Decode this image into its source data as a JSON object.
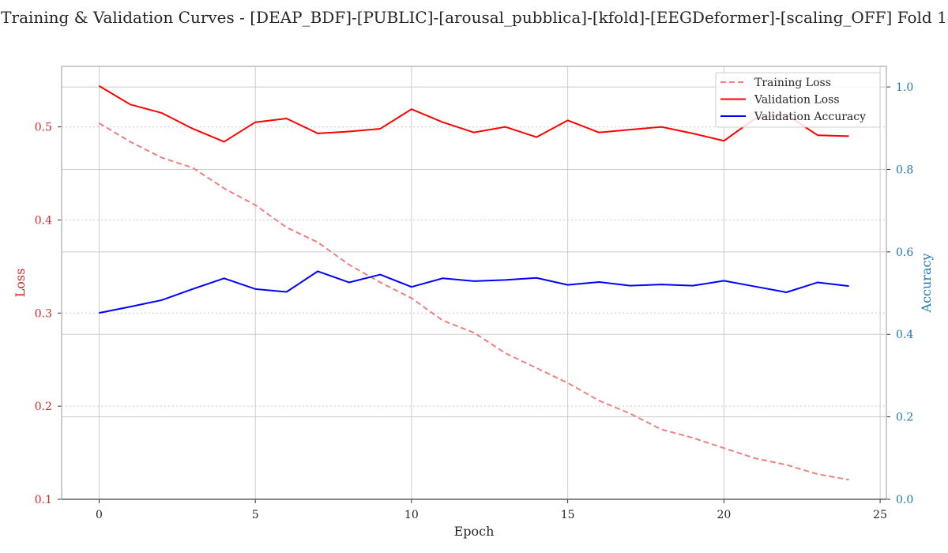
{
  "chart_data": {
    "type": "line",
    "title": "Training & Validation Curves - [DEAP_BDF]-[PUBLIC]-[arousal_pubblica]-[kfold]-[EEGDeformer]-[scaling_OFF] Fold 1",
    "xlabel": "Epoch",
    "ylabel_left": "Loss",
    "ylabel_right": "Accuracy",
    "xlim": [
      -1.2,
      25.2
    ],
    "ylim_left": [
      0.1,
      0.565
    ],
    "ylim_right": [
      0.0,
      1.05
    ],
    "x_ticks": [
      0,
      5,
      10,
      15,
      20,
      25
    ],
    "y_ticks_left": [
      0.1,
      0.2,
      0.3,
      0.4,
      0.5
    ],
    "y_ticks_right": [
      0.0,
      0.2,
      0.4,
      0.6,
      0.8,
      1.0
    ],
    "legend_position": "top-right",
    "grid": true,
    "colors": {
      "left_axis": "#d62728",
      "right_axis": "#1f77b4",
      "grid": "#cccccc"
    },
    "x": [
      0,
      1,
      2,
      3,
      4,
      5,
      6,
      7,
      8,
      9,
      10,
      11,
      12,
      13,
      14,
      15,
      16,
      17,
      18,
      19,
      20,
      21,
      22,
      23,
      24
    ],
    "series": [
      {
        "name": "Training Loss",
        "axis": "left",
        "color": "#f08080",
        "dash": "dashed",
        "values": [
          0.504,
          0.484,
          0.467,
          0.456,
          0.434,
          0.416,
          0.392,
          0.376,
          0.352,
          0.333,
          0.316,
          0.292,
          0.279,
          0.257,
          0.241,
          0.225,
          0.206,
          0.192,
          0.175,
          0.166,
          0.155,
          0.144,
          0.137,
          0.127,
          0.121
        ]
      },
      {
        "name": "Validation Loss",
        "axis": "left",
        "color": "#ff0000",
        "dash": "solid",
        "values": [
          0.544,
          0.524,
          0.515,
          0.498,
          0.484,
          0.505,
          0.509,
          0.493,
          0.495,
          0.498,
          0.519,
          0.505,
          0.494,
          0.5,
          0.489,
          0.507,
          0.494,
          0.497,
          0.5,
          0.493,
          0.485,
          0.509,
          0.513,
          0.491,
          0.49
        ]
      },
      {
        "name": "Validation Accuracy",
        "axis": "right",
        "color": "#0000ff",
        "dash": "solid",
        "values": [
          0.452,
          0.467,
          0.483,
          0.51,
          0.536,
          0.51,
          0.503,
          0.553,
          0.526,
          0.545,
          0.515,
          0.536,
          0.529,
          0.532,
          0.537,
          0.52,
          0.527,
          0.518,
          0.521,
          0.518,
          0.53,
          0.516,
          0.502,
          0.526,
          0.517
        ]
      }
    ]
  }
}
